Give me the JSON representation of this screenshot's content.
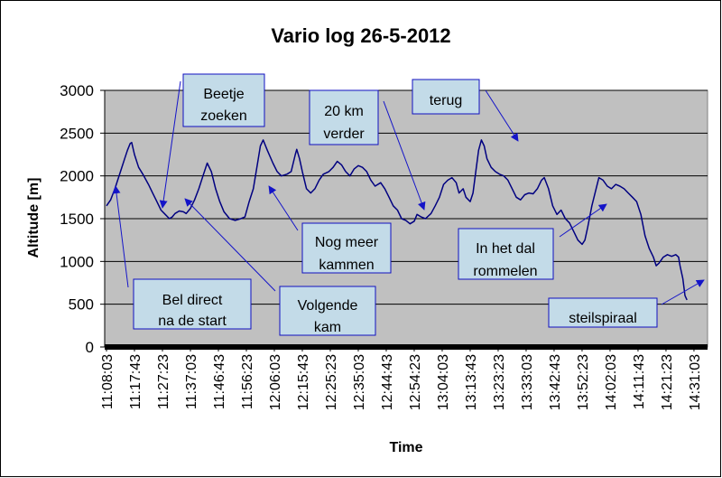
{
  "chart_data": {
    "type": "line",
    "title": "Vario log 26-5-2012",
    "xlabel": "Time",
    "ylabel": "Altitude [m]",
    "ylim": [
      0,
      3000
    ],
    "y_ticks": [
      0,
      500,
      1000,
      1500,
      2000,
      2500,
      3000
    ],
    "grid": true,
    "legend": "none",
    "line_color": "#000080",
    "plot_bg_color": "#c0c0c0",
    "annotation_box_color": "#c3dbe8",
    "annotation_border_color": "#1010c0",
    "x_ticks": [
      "11:08:03",
      "11:17:43",
      "11:27:23",
      "11:37:03",
      "11:46:43",
      "11:56:23",
      "12:06:03",
      "12:15:43",
      "12:25:23",
      "12:35:03",
      "12:44:43",
      "12:54:23",
      "13:04:03",
      "13:13:43",
      "13:23:23",
      "13:33:03",
      "13:42:43",
      "13:52:23",
      "14:02:03",
      "14:11:43",
      "14:21:23",
      "14:31:03"
    ],
    "series": [
      {
        "points": [
          [
            0,
            1650
          ],
          [
            0.15,
            1720
          ],
          [
            0.3,
            1850
          ],
          [
            0.5,
            2050
          ],
          [
            0.65,
            2200
          ],
          [
            0.75,
            2300
          ],
          [
            0.85,
            2380
          ],
          [
            0.9,
            2390
          ],
          [
            1.0,
            2250
          ],
          [
            1.15,
            2100
          ],
          [
            1.3,
            2020
          ],
          [
            1.5,
            1900
          ],
          [
            1.65,
            1800
          ],
          [
            1.8,
            1700
          ],
          [
            1.95,
            1600
          ],
          [
            2.1,
            1550
          ],
          [
            2.25,
            1500
          ],
          [
            2.35,
            1520
          ],
          [
            2.45,
            1560
          ],
          [
            2.6,
            1590
          ],
          [
            2.75,
            1580
          ],
          [
            2.85,
            1560
          ],
          [
            3.0,
            1620
          ],
          [
            3.15,
            1720
          ],
          [
            3.3,
            1850
          ],
          [
            3.45,
            2000
          ],
          [
            3.6,
            2150
          ],
          [
            3.75,
            2050
          ],
          [
            3.9,
            1850
          ],
          [
            4.05,
            1700
          ],
          [
            4.2,
            1580
          ],
          [
            4.4,
            1500
          ],
          [
            4.6,
            1480
          ],
          [
            4.8,
            1500
          ],
          [
            4.95,
            1520
          ],
          [
            5.1,
            1700
          ],
          [
            5.25,
            1850
          ],
          [
            5.4,
            2150
          ],
          [
            5.5,
            2350
          ],
          [
            5.6,
            2420
          ],
          [
            5.75,
            2300
          ],
          [
            5.95,
            2150
          ],
          [
            6.1,
            2050
          ],
          [
            6.25,
            2000
          ],
          [
            6.45,
            2020
          ],
          [
            6.6,
            2050
          ],
          [
            6.75,
            2250
          ],
          [
            6.8,
            2310
          ],
          [
            6.9,
            2200
          ],
          [
            7.0,
            2050
          ],
          [
            7.15,
            1850
          ],
          [
            7.3,
            1800
          ],
          [
            7.45,
            1850
          ],
          [
            7.6,
            1950
          ],
          [
            7.75,
            2020
          ],
          [
            7.95,
            2050
          ],
          [
            8.1,
            2100
          ],
          [
            8.25,
            2170
          ],
          [
            8.4,
            2130
          ],
          [
            8.55,
            2050
          ],
          [
            8.7,
            2000
          ],
          [
            8.85,
            2080
          ],
          [
            9.0,
            2120
          ],
          [
            9.15,
            2100
          ],
          [
            9.3,
            2050
          ],
          [
            9.45,
            1950
          ],
          [
            9.6,
            1880
          ],
          [
            9.8,
            1920
          ],
          [
            9.95,
            1850
          ],
          [
            10.1,
            1750
          ],
          [
            10.25,
            1650
          ],
          [
            10.4,
            1600
          ],
          [
            10.55,
            1500
          ],
          [
            10.7,
            1480
          ],
          [
            10.85,
            1440
          ],
          [
            11.0,
            1470
          ],
          [
            11.1,
            1550
          ],
          [
            11.25,
            1520
          ],
          [
            11.4,
            1500
          ],
          [
            11.6,
            1560
          ],
          [
            11.75,
            1650
          ],
          [
            11.9,
            1750
          ],
          [
            12.05,
            1900
          ],
          [
            12.2,
            1950
          ],
          [
            12.35,
            1980
          ],
          [
            12.5,
            1920
          ],
          [
            12.6,
            1800
          ],
          [
            12.75,
            1850
          ],
          [
            12.85,
            1750
          ],
          [
            13.0,
            1700
          ],
          [
            13.1,
            1800
          ],
          [
            13.2,
            2050
          ],
          [
            13.3,
            2300
          ],
          [
            13.4,
            2420
          ],
          [
            13.5,
            2350
          ],
          [
            13.6,
            2200
          ],
          [
            13.75,
            2100
          ],
          [
            13.9,
            2050
          ],
          [
            14.05,
            2020
          ],
          [
            14.2,
            2000
          ],
          [
            14.35,
            1950
          ],
          [
            14.5,
            1850
          ],
          [
            14.65,
            1750
          ],
          [
            14.8,
            1720
          ],
          [
            14.95,
            1780
          ],
          [
            15.1,
            1800
          ],
          [
            15.25,
            1790
          ],
          [
            15.4,
            1850
          ],
          [
            15.55,
            1950
          ],
          [
            15.65,
            1980
          ],
          [
            15.8,
            1850
          ],
          [
            15.95,
            1650
          ],
          [
            16.1,
            1550
          ],
          [
            16.25,
            1600
          ],
          [
            16.4,
            1500
          ],
          [
            16.55,
            1450
          ],
          [
            16.7,
            1350
          ],
          [
            16.85,
            1250
          ],
          [
            17.0,
            1200
          ],
          [
            17.1,
            1250
          ],
          [
            17.2,
            1400
          ],
          [
            17.35,
            1650
          ],
          [
            17.5,
            1850
          ],
          [
            17.6,
            1980
          ],
          [
            17.75,
            1950
          ],
          [
            17.9,
            1880
          ],
          [
            18.05,
            1850
          ],
          [
            18.2,
            1900
          ],
          [
            18.35,
            1880
          ],
          [
            18.5,
            1850
          ],
          [
            18.65,
            1800
          ],
          [
            18.8,
            1750
          ],
          [
            18.95,
            1700
          ],
          [
            19.1,
            1550
          ],
          [
            19.25,
            1300
          ],
          [
            19.4,
            1150
          ],
          [
            19.55,
            1050
          ],
          [
            19.65,
            950
          ],
          [
            19.75,
            980
          ],
          [
            19.9,
            1050
          ],
          [
            20.05,
            1080
          ],
          [
            20.2,
            1060
          ],
          [
            20.35,
            1080
          ],
          [
            20.45,
            1050
          ],
          [
            20.5,
            950
          ],
          [
            20.6,
            800
          ],
          [
            20.68,
            600
          ],
          [
            20.75,
            550
          ]
        ]
      }
    ],
    "annotations": [
      {
        "text": [
          "Beetje",
          "zoeken"
        ]
      },
      {
        "text": [
          "20 km",
          "verder"
        ]
      },
      {
        "text": [
          "terug"
        ]
      },
      {
        "text": [
          "Nog meer",
          "kammen"
        ]
      },
      {
        "text": [
          "In het dal",
          "rommelen"
        ]
      },
      {
        "text": [
          "Bel direct",
          "na de start"
        ]
      },
      {
        "text": [
          "Volgende",
          "kam"
        ]
      },
      {
        "text": [
          "steilspiraal"
        ]
      }
    ]
  }
}
